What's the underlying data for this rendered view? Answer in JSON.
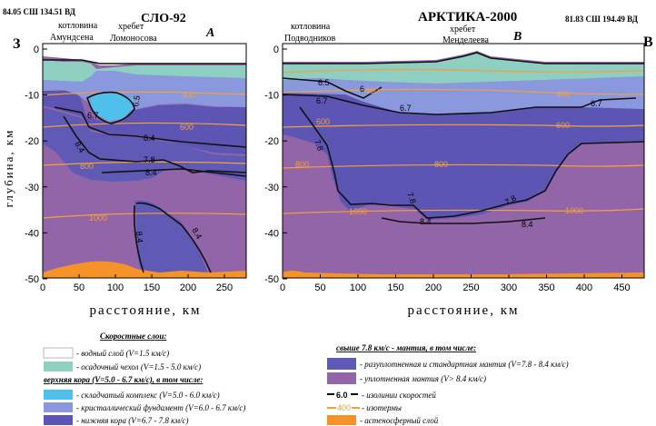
{
  "left_section": {
    "coords": "84.05 СШ 134.51 ВД",
    "title": "СЛО-92",
    "letter": "A",
    "west_label": "З",
    "basin_label_1": "котловина",
    "basin_label_2": "Амундсена",
    "ridge_label_1": "хребет",
    "ridge_label_2": "Ломоносова",
    "x_ticks": [
      "0",
      "50",
      "100",
      "150",
      "200",
      "250"
    ],
    "isotherms": [
      "400",
      "600",
      "800",
      "1000"
    ],
    "isolines": [
      "6.5",
      "6.7",
      "8.4",
      "8.4",
      "7.8",
      "8.4",
      "8.4",
      "8.4"
    ]
  },
  "right_section": {
    "coords": "81.83 СШ 194.49 ВД",
    "title": "АРКТИКА-2000",
    "letter": "B",
    "east_label": "В",
    "basin_label_1": "котловина",
    "basin_label_2": "Подводников",
    "ridge_label_1": "хребет",
    "ridge_label_2": "Менделеева",
    "x_ticks": [
      "0",
      "50",
      "100",
      "150",
      "200",
      "250",
      "300",
      "350",
      "400",
      "450"
    ],
    "isotherms": [
      "400",
      "400",
      "600",
      "600",
      "800",
      "800",
      "1000",
      "1000"
    ],
    "isolines": [
      "6.5",
      "6",
      "6.7",
      "6.7",
      "7.8",
      "7.8",
      "7.8",
      "8.4",
      "8.4",
      "6.7"
    ]
  },
  "axes": {
    "y_ticks": [
      "0",
      "-10",
      "-20",
      "-30",
      "-40",
      "-50"
    ],
    "y_label": "глубина, км",
    "x_label": "расстояние, км"
  },
  "legend": {
    "heading": "Скоростные слои:",
    "water": "- водный слой (V=1.5 км/с)",
    "sediment": "- осадочный чехол (V=1.5 - 5.0 км/с)",
    "upper_crust_heading": "верхняя кора (V=5.0 - 6.7 км/с), в том числе:",
    "folded": "- складчатый комплекс (V=5.0 - 6.0 км/с)",
    "basement": "- кристаллический фундамент (V=6.0 - 6.7 км/с)",
    "lower_crust": "- нижняя кора (V=6.7 - 7.8 км/с)",
    "mantle_heading": "свыше 7.8 км/с - мантия, в том числе:",
    "mantle_std": "- разуплотненная и стандартная мантия (V=7.8 - 8.4 км/с)",
    "mantle_dense": "- уплотненная мантия (V> 8.4 км/с)",
    "isoline_sample": "6.0",
    "isoline_desc": "- изолинии скоростей",
    "isotherm_sample": "400",
    "isotherm_desc": "- изотермы",
    "astheno_desc": "- астеносферный слой"
  },
  "colors": {
    "water": "#ffffff",
    "sediment": "#8ecfc2",
    "folded": "#4fc0ea",
    "basement": "#8a98dd",
    "lower_crust": "#5d55b4",
    "mantle_std": "#5e5ab6",
    "mantle_dense": "#9265a8",
    "isotherm": "#f4a03c",
    "astheno": "#f5922a",
    "isoline": "#111111"
  }
}
